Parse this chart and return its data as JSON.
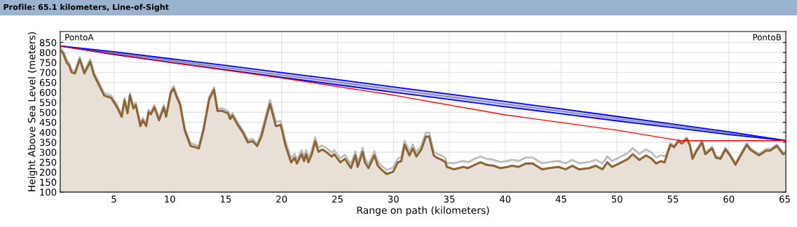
{
  "chart_data": {
    "type": "line",
    "title": "Profile: 65.1 kilometers, Line-of-Sight",
    "xlabel": "Range on path (kilometers)",
    "ylabel": "Height Above Sea Level (meters)",
    "annotations": [
      "PontoA",
      "PontoB"
    ],
    "xlim": [
      0.2,
      65.1
    ],
    "ylim": [
      100,
      905
    ],
    "xticks": [
      5,
      10,
      15,
      20,
      25,
      30,
      35,
      40,
      45,
      50,
      55,
      60,
      65
    ],
    "yticks": [
      100,
      150,
      200,
      250,
      300,
      350,
      400,
      450,
      500,
      550,
      600,
      650,
      700,
      750,
      800,
      850
    ],
    "grid": true,
    "marker": "none",
    "series": [
      {
        "type": "line",
        "color": "#bdbdbd",
        "x": [
          0.2,
          0.47,
          0.79,
          1.0,
          1.2,
          1.52,
          1.94,
          2.36,
          2.88,
          3.2,
          3.82,
          4.13,
          4.76,
          5.28,
          5.7,
          5.95,
          6.22,
          6.43,
          6.74,
          6.95,
          7.37,
          7.58,
          7.89,
          8.1,
          8.31,
          8.62,
          9.04,
          9.46,
          9.67,
          10.08,
          10.34,
          10.6,
          10.92,
          11.34,
          11.86,
          12.28,
          12.6,
          13.0,
          13.53,
          13.95,
          14.26,
          14.68,
          15.2,
          15.4,
          15.6,
          16.14,
          16.56,
          16.98,
          17.4,
          17.82,
          18.2,
          18.65,
          18.96,
          19.27,
          19.48,
          19.9,
          20.0,
          20.33,
          20.85,
          21.16,
          21.37,
          21.79,
          22.0,
          22.2,
          22.4,
          22.7,
          23.0,
          23.3,
          23.65,
          24.1,
          24.5,
          24.7,
          25.25,
          25.66,
          26.2,
          26.6,
          26.8,
          27.25,
          27.45,
          27.77,
          28.3,
          28.6,
          28.9,
          29.4,
          29.97,
          30.4,
          30.7,
          31.0,
          31.43,
          31.74,
          32.06,
          32.5,
          32.9,
          33.2,
          33.6,
          33.9,
          34.1,
          34.35,
          34.66,
          34.78,
          35.4,
          36.25,
          36.66,
          37.3,
          37.8,
          38.3,
          38.95,
          39.57,
          40.2,
          40.6,
          41.2,
          41.85,
          42.45,
          43.3,
          43.9,
          44.75,
          45.4,
          46.0,
          46.6,
          47.5,
          48.1,
          48.7,
          49.13,
          49.55,
          50.2,
          51.0,
          51.4,
          52.0,
          52.6,
          53.1,
          53.5,
          53.9,
          54.25,
          54.46,
          54.77,
          55.1,
          55.5,
          55.8,
          56.24,
          56.5,
          56.76,
          57.07,
          57.6,
          57.9,
          58.5,
          58.85,
          59.26,
          59.7,
          60.1,
          60.6,
          61.0,
          61.6,
          61.9,
          62.2,
          62.7,
          63.35,
          63.7,
          64.3,
          64.85,
          65.1
        ],
        "values": [
          824,
          807,
          760,
          748,
          713,
          707,
          777,
          707,
          766,
          701,
          631,
          596,
          584,
          537,
          490,
          572,
          507,
          596,
          531,
          549,
          443,
          472,
          443,
          513,
          502,
          537,
          472,
          537,
          490,
          608,
          631,
          591,
          549,
          420,
          343,
          337,
          331,
          420,
          579,
          625,
          519,
          519,
          507,
          478,
          496,
          443,
          408,
          361,
          367,
          343,
          400,
          498,
          562,
          498,
          451,
          457,
          439,
          357,
          269,
          292,
          263,
          310,
          275,
          310,
          269,
          310,
          375,
          322,
          334,
          316,
          298,
          310,
          269,
          287,
          240,
          304,
          246,
          322,
          269,
          240,
          304,
          252,
          234,
          210,
          222,
          269,
          275,
          357,
          304,
          339,
          298,
          334,
          398,
          398,
          304,
          292,
          287,
          281,
          269,
          246,
          244,
          256,
          250,
          267,
          279,
          267,
          262,
          250,
          256,
          262,
          256,
          273,
          273,
          244,
          250,
          256,
          244,
          262,
          244,
          250,
          262,
          244,
          279,
          256,
          273,
          297,
          320,
          291,
          314,
          297,
          273,
          285,
          279,
          292,
          345,
          333,
          363,
          351,
          374,
          345,
          275,
          310,
          357,
          298,
          327,
          280,
          275,
          322,
          292,
          245,
          286,
          345,
          322,
          310,
          292,
          316,
          316,
          339,
          298,
          304
        ]
      },
      {
        "type": "area",
        "color": "#8b6632",
        "x": [
          0.2,
          0.47,
          0.79,
          1.0,
          1.2,
          1.52,
          1.94,
          2.36,
          2.88,
          3.2,
          3.82,
          4.13,
          4.76,
          5.28,
          5.7,
          5.95,
          6.22,
          6.43,
          6.74,
          6.95,
          7.37,
          7.58,
          7.89,
          8.1,
          8.31,
          8.62,
          9.04,
          9.46,
          9.67,
          10.08,
          10.34,
          10.6,
          10.92,
          11.34,
          11.86,
          12.28,
          12.6,
          13.0,
          13.53,
          13.95,
          14.26,
          14.68,
          15.2,
          15.4,
          15.6,
          16.14,
          16.56,
          16.98,
          17.4,
          17.82,
          18.2,
          18.65,
          18.96,
          19.27,
          19.48,
          19.9,
          20.0,
          20.33,
          20.85,
          21.16,
          21.37,
          21.79,
          22.0,
          22.2,
          22.4,
          22.7,
          23.0,
          23.3,
          23.65,
          24.1,
          24.5,
          24.7,
          25.25,
          25.66,
          26.2,
          26.6,
          26.8,
          27.25,
          27.45,
          27.77,
          28.3,
          28.6,
          28.9,
          29.4,
          29.97,
          30.4,
          30.7,
          31.0,
          31.43,
          31.74,
          32.06,
          32.5,
          32.9,
          33.2,
          33.6,
          33.9,
          34.1,
          34.35,
          34.66,
          34.78,
          35.4,
          36.25,
          36.66,
          37.3,
          37.8,
          38.3,
          38.95,
          39.57,
          40.2,
          40.6,
          41.2,
          41.85,
          42.45,
          43.3,
          43.9,
          44.75,
          45.4,
          46.0,
          46.6,
          47.5,
          48.1,
          48.7,
          49.13,
          49.55,
          50.2,
          51.0,
          51.4,
          52.0,
          52.6,
          53.1,
          53.5,
          53.9,
          54.25,
          54.46,
          54.77,
          55.1,
          55.5,
          55.8,
          56.24,
          56.5,
          56.76,
          57.07,
          57.6,
          57.9,
          58.5,
          58.85,
          59.26,
          59.7,
          60.1,
          60.6,
          61.0,
          61.6,
          61.9,
          62.2,
          62.7,
          63.35,
          63.7,
          64.3,
          64.85,
          65.1
        ],
        "values": [
          812,
          795,
          748,
          736,
          701,
          695,
          765,
          695,
          754,
          689,
          619,
          584,
          572,
          525,
          478,
          560,
          495,
          584,
          519,
          537,
          431,
          460,
          431,
          501,
          490,
          525,
          460,
          525,
          478,
          596,
          619,
          579,
          537,
          408,
          331,
          325,
          319,
          408,
          567,
          613,
          507,
          507,
          495,
          466,
          484,
          431,
          396,
          349,
          355,
          331,
          380,
          478,
          542,
          478,
          431,
          437,
          419,
          337,
          249,
          272,
          243,
          290,
          255,
          290,
          249,
          290,
          355,
          302,
          314,
          296,
          278,
          290,
          249,
          267,
          220,
          284,
          226,
          302,
          249,
          220,
          284,
          232,
          214,
          190,
          202,
          249,
          255,
          337,
          284,
          319,
          278,
          314,
          378,
          378,
          284,
          272,
          267,
          261,
          249,
          226,
          214,
          226,
          220,
          237,
          249,
          237,
          232,
          220,
          226,
          232,
          226,
          243,
          243,
          214,
          220,
          226,
          214,
          232,
          214,
          220,
          232,
          214,
          249,
          226,
          243,
          267,
          290,
          261,
          284,
          267,
          243,
          255,
          249,
          284,
          337,
          325,
          355,
          343,
          366,
          337,
          267,
          302,
          349,
          290,
          319,
          272,
          267,
          314,
          284,
          237,
          278,
          337,
          314,
          302,
          284,
          308,
          308,
          331,
          290,
          296
        ]
      },
      {
        "type": "line",
        "color": "#ff0000",
        "x": [
          0.2,
          10,
          20,
          30,
          40,
          50,
          55.6,
          65.1
        ],
        "values": [
          831,
          750,
          672,
          586,
          487,
          410,
          358,
          358
        ]
      },
      {
        "type": "line",
        "color": "#808080",
        "x": [
          0.2,
          5,
          10,
          15,
          20,
          25,
          30,
          35,
          40,
          45,
          50,
          55,
          60,
          65.1
        ],
        "values": [
          833,
          797,
          760,
          724,
          687,
          651,
          614,
          578,
          541,
          505,
          468,
          432,
          395,
          358
        ],
        "lower": [
          833,
          790,
          751,
          713,
          675,
          638,
          601,
          565,
          528,
          493,
          457,
          423,
          388,
          358
        ],
        "upper": [
          833,
          804,
          769,
          735,
          699,
          664,
          627,
          591,
          554,
          517,
          479,
          441,
          402,
          358
        ]
      }
    ]
  }
}
